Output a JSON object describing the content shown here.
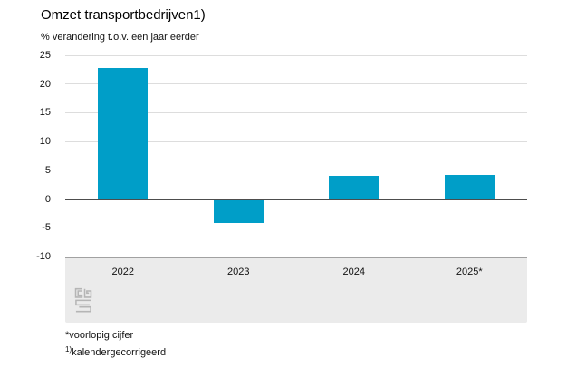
{
  "chart_data": {
    "type": "bar",
    "title": "Omzet transportbedrijven1)",
    "subtitle": "% verandering t.o.v. een jaar eerder",
    "categories": [
      "2022",
      "2023",
      "2024",
      "2025*"
    ],
    "values": [
      22.8,
      -4.2,
      4.0,
      4.2
    ],
    "xlabel": "",
    "ylabel": "% verandering t.o.v. een jaar eerder",
    "ylim": [
      -10,
      25
    ],
    "yticks": [
      25,
      20,
      15,
      10,
      5,
      0,
      -5,
      -10
    ],
    "grid": true,
    "legend": false,
    "bar_color": "#009ec8",
    "annotations": [
      "*voorlopig cijfer",
      "1)kalendergecorrigeerd"
    ]
  },
  "footnotes": {
    "line1": "*voorlopig cijfer",
    "line2_marker": "1)",
    "line2_text": "kalendergecorrigeerd"
  },
  "branding": {
    "logo": "cbs-logo"
  },
  "colors": {
    "bar": "#009ec8",
    "gridline": "#dddddd",
    "zero_line": "#4d4d4d",
    "band_background": "#ebebeb",
    "band_border": "#a1a1a1",
    "logo_gray": "#b5b5b5",
    "text": "#111111"
  }
}
